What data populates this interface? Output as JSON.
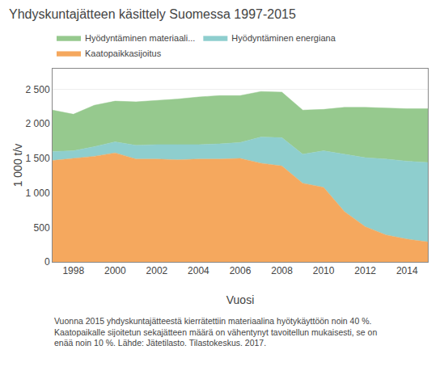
{
  "chart_data": {
    "type": "area",
    "stacked": true,
    "title": "Yhdyskuntajätteen käsittely Suomessa 1997-2015",
    "x_label": "Vuosi",
    "y_label": "1 000 t/v",
    "annotations": [
      "Vuonna 2015 yhdyskuntajätteestä kierrätettiin materiaalina hyötykäyttöön noin 40 %. Kaatopaikalle sijoitetun sekajätteen määrä on vähentynyt tavoitellun mukaisesti, se on enää noin 10 %. Lähde: Jätetilasto. Tilastokeskus. 2017."
    ],
    "x": [
      1997,
      1998,
      1999,
      2000,
      2001,
      2002,
      2003,
      2004,
      2005,
      2006,
      2007,
      2008,
      2009,
      2010,
      2011,
      2012,
      2013,
      2014,
      2015
    ],
    "series": [
      {
        "name": "Kaatopaikkasijoitus",
        "color": "#f5a85e",
        "values": [
          1470,
          1500,
          1530,
          1580,
          1490,
          1490,
          1480,
          1490,
          1490,
          1500,
          1430,
          1390,
          1140,
          1080,
          730,
          510,
          390,
          330,
          290
        ]
      },
      {
        "name": "Hyödyntäminen energiana",
        "color": "#8ecece",
        "values": [
          130,
          110,
          140,
          160,
          200,
          210,
          220,
          210,
          220,
          230,
          380,
          410,
          420,
          530,
          830,
          1000,
          1100,
          1130,
          1150
        ]
      },
      {
        "name": "Hyödyntäminen materiaali...",
        "color": "#96c98e",
        "values": [
          600,
          530,
          600,
          590,
          630,
          640,
          660,
          690,
          700,
          680,
          660,
          660,
          640,
          600,
          680,
          730,
          740,
          760,
          780
        ]
      }
    ],
    "xlim": [
      1997,
      2015
    ],
    "xticks": [
      1998,
      2000,
      2002,
      2004,
      2006,
      2008,
      2010,
      2012,
      2014
    ],
    "ylim": [
      0,
      2800
    ],
    "yticks": [
      0,
      500,
      {
        "value": 1000,
        "label": "1 000"
      },
      {
        "value": 1500,
        "label": "1 500"
      },
      {
        "value": 2000,
        "label": "2 000"
      },
      {
        "value": 2500,
        "label": "2 500"
      }
    ],
    "grid": true,
    "legend": "top"
  }
}
